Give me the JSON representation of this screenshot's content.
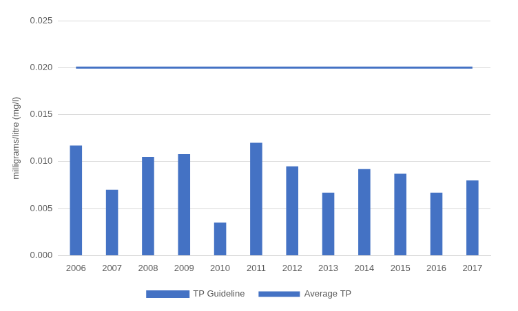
{
  "chart_data": {
    "type": "bar",
    "categories": [
      "2006",
      "2007",
      "2008",
      "2009",
      "2010",
      "2011",
      "2012",
      "2013",
      "2014",
      "2015",
      "2016",
      "2017"
    ],
    "series": [
      {
        "name": "Average TP",
        "type": "bar",
        "color": "#4472c4",
        "values": [
          0.0117,
          0.007,
          0.0105,
          0.0108,
          0.0035,
          0.012,
          0.0095,
          0.0067,
          0.0092,
          0.0087,
          0.0067,
          0.008
        ]
      },
      {
        "name": "TP Guideline",
        "type": "line",
        "color": "#4472c4",
        "marker": "none",
        "line_style": "solid",
        "values": [
          0.02,
          0.02,
          0.02,
          0.02,
          0.02,
          0.02,
          0.02,
          0.02,
          0.02,
          0.02,
          0.02,
          0.02
        ]
      }
    ],
    "y_label": "milligrams/litre (mg/l)",
    "ylim": [
      0,
      0.025
    ],
    "yticks": [
      {
        "value": 0,
        "label": "0.000"
      },
      {
        "value": 0.005,
        "label": "0.005"
      },
      {
        "value": 0.01,
        "label": "0.010"
      },
      {
        "value": 0.015,
        "label": "0.015"
      },
      {
        "value": 0.02,
        "label": "0.020"
      },
      {
        "value": 0.025,
        "label": "0.025"
      }
    ],
    "grid": true,
    "legend": "bottom"
  }
}
